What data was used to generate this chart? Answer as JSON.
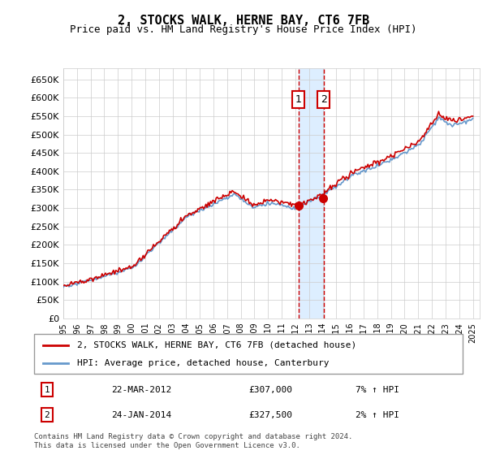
{
  "title": "2, STOCKS WALK, HERNE BAY, CT6 7FB",
  "subtitle": "Price paid vs. HM Land Registry's House Price Index (HPI)",
  "legend_line1": "2, STOCKS WALK, HERNE BAY, CT6 7FB (detached house)",
  "legend_line2": "HPI: Average price, detached house, Canterbury",
  "sale1_date": "22-MAR-2012",
  "sale1_price": "£307,000",
  "sale1_hpi": "7% ↑ HPI",
  "sale1_year": 2012.22,
  "sale1_price_val": 307000,
  "sale2_date": "24-JAN-2014",
  "sale2_price": "£327,500",
  "sale2_hpi": "2% ↑ HPI",
  "sale2_year": 2014.07,
  "sale2_price_val": 327500,
  "footnote": "Contains HM Land Registry data © Crown copyright and database right 2024.\nThis data is licensed under the Open Government Licence v3.0.",
  "line_color_red": "#cc0000",
  "line_color_blue": "#6699cc",
  "shade_color": "#ddeeff",
  "ylim_min": 0,
  "ylim_max": 680000,
  "yticks": [
    0,
    50000,
    100000,
    150000,
    200000,
    250000,
    300000,
    350000,
    400000,
    450000,
    500000,
    550000,
    600000,
    650000
  ],
  "year_start": 1995,
  "year_end": 2025
}
